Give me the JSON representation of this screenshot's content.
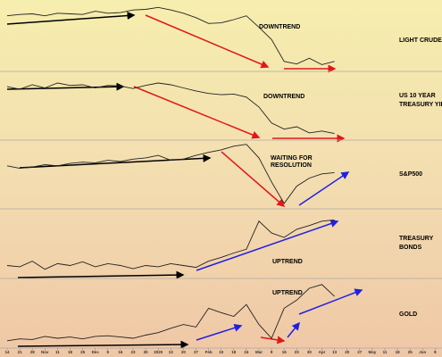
{
  "chart_data": [
    {
      "type": "line",
      "label": [
        "LIGHT CRUDE"
      ],
      "annotation": [
        "DOWNTREND"
      ],
      "ylim": [
        0,
        100
      ],
      "series": [
        {
          "color": "#222222",
          "values": [
            81,
            83,
            84,
            81,
            85,
            84,
            83,
            88,
            85,
            86,
            90,
            91,
            94,
            90,
            85,
            78,
            69,
            70,
            75,
            81,
            63,
            44,
            10,
            6,
            15,
            5,
            10,
            null,
            null,
            null,
            null,
            null,
            null,
            null,
            null
          ]
        }
      ]
    },
    {
      "type": "line",
      "label": [
        "US 10 YEAR",
        "TREASURY YIELD"
      ],
      "annotation": [
        "DOWNTREND"
      ],
      "ylim": [
        0,
        100
      ],
      "series": [
        {
          "color": "#222222",
          "values": [
            81,
            77,
            84,
            79,
            87,
            83,
            84,
            79,
            83,
            82,
            78,
            83,
            87,
            84,
            79,
            74,
            70,
            68,
            69,
            64,
            48,
            22,
            12,
            16,
            6,
            9,
            5,
            null,
            null,
            null,
            null,
            null,
            null,
            null,
            null
          ]
        }
      ]
    },
    {
      "type": "line",
      "label": [
        "S&P500"
      ],
      "annotation": [
        "WAITING FOR",
        "RESOLUTION"
      ],
      "annotation_color": "#b020d0",
      "ylim": [
        0,
        100
      ],
      "series": [
        {
          "color": "#222222",
          "values": [
            64,
            60,
            62,
            66,
            64,
            68,
            70,
            69,
            73,
            71,
            75,
            77,
            81,
            73,
            75,
            81,
            86,
            90,
            96,
            99,
            77,
            38,
            3,
            31,
            44,
            51,
            53,
            null,
            null,
            null,
            null,
            null,
            null,
            null,
            null
          ]
        }
      ]
    },
    {
      "type": "line",
      "label": [
        "TREASURY",
        "BONDS"
      ],
      "annotation": [
        "UPTREND"
      ],
      "ylim": [
        0,
        100
      ],
      "series": [
        {
          "color": "#222222",
          "values": [
            15,
            13,
            22,
            9,
            18,
            15,
            21,
            13,
            18,
            15,
            10,
            15,
            13,
            18,
            15,
            12,
            22,
            28,
            35,
            41,
            86,
            67,
            60,
            73,
            79,
            86,
            88,
            null,
            null,
            null,
            null,
            null,
            null,
            null,
            null
          ]
        }
      ]
    },
    {
      "type": "line",
      "label": [
        "GOLD"
      ],
      "annotation": [
        "UPTREND"
      ],
      "ylim": [
        0,
        100
      ],
      "categories": [
        "14",
        "21",
        "28",
        "Nov",
        "11",
        "18",
        "25",
        "Dec",
        "9",
        "16",
        "23",
        "30",
        "2020",
        "13",
        "20",
        "27",
        "Feb",
        "10",
        "18",
        "24",
        "Mar",
        "9",
        "16",
        "23",
        "30",
        "Apr",
        "13",
        "20",
        "27",
        "May",
        "11",
        "18",
        "25",
        "Jun",
        "8"
      ],
      "series": [
        {
          "color": "#222222",
          "values": [
            6,
            9,
            8,
            13,
            10,
            12,
            9,
            13,
            14,
            12,
            10,
            15,
            19,
            26,
            32,
            28,
            58,
            51,
            45,
            64,
            32,
            10,
            58,
            71,
            90,
            96,
            77,
            null,
            null,
            null,
            null,
            null,
            null,
            null,
            null
          ]
        }
      ]
    }
  ]
}
